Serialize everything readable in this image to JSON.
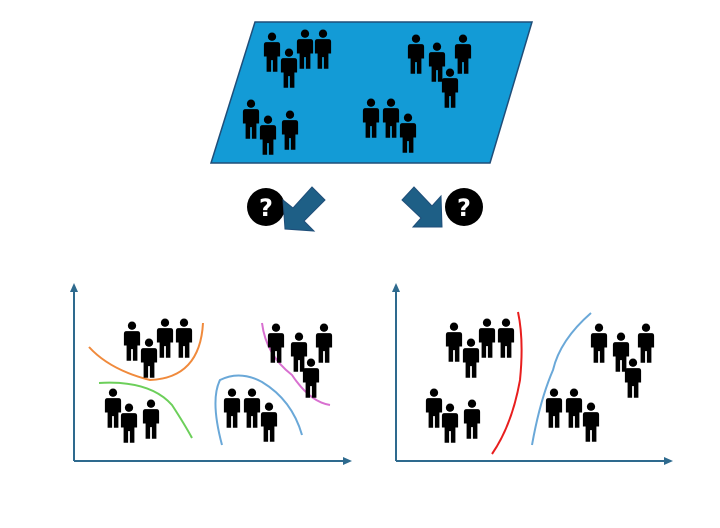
{
  "colors": {
    "plane_fill": "#139bd6",
    "plane_stroke": "#1f4e79",
    "arrow_fill": "#1e5f86",
    "axis": "#2e6a8e",
    "person": "#000000",
    "badge": "#000000",
    "curve_orange": "#f08a3c",
    "curve_green": "#6ccf5a",
    "curve_blue": "#6aa8d8",
    "curve_pink": "#d870d0",
    "curve_red": "#e81e1e"
  },
  "badges": {
    "left": {
      "symbol": "?",
      "icon": "question-badge-icon"
    },
    "right": {
      "symbol": "?",
      "icon": "question-badge-icon"
    }
  },
  "icons": {
    "person": "person-icon",
    "arrow": "down-arrow-icon"
  },
  "panels": {
    "left": {
      "boundary_count": 4,
      "cluster_count": 4
    },
    "right": {
      "boundary_count": 2,
      "cluster_count": 4
    }
  }
}
